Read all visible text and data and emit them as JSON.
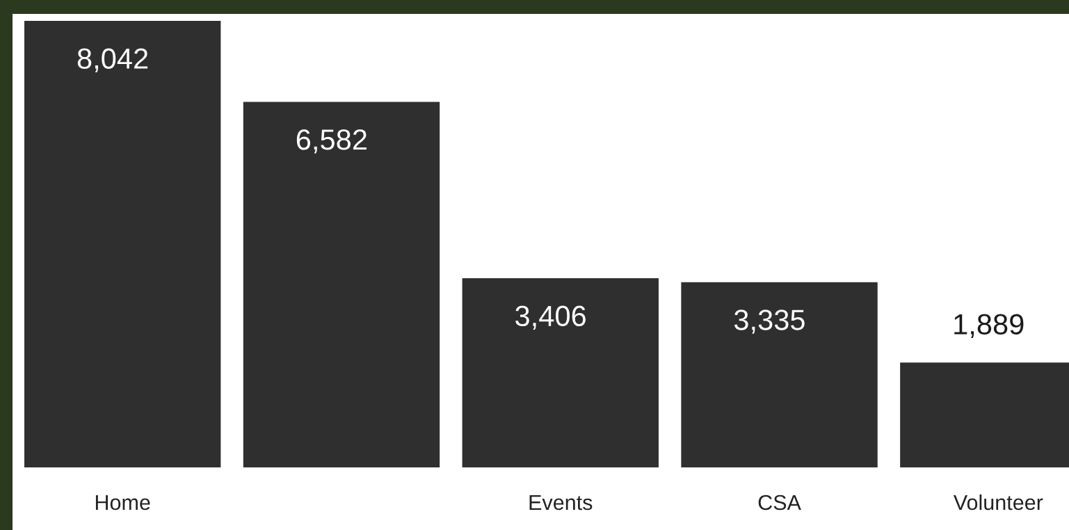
{
  "chart_data": {
    "type": "bar",
    "categories": [
      "Home",
      null,
      "Events",
      "CSA",
      "Volunteer"
    ],
    "values": [
      8042,
      6582,
      3406,
      3335,
      1889
    ],
    "value_labels": [
      "8,042",
      "6,582",
      "3,406",
      "3,335",
      "1,889"
    ],
    "color": "#2f2f2f",
    "grid": false,
    "legend": false
  }
}
